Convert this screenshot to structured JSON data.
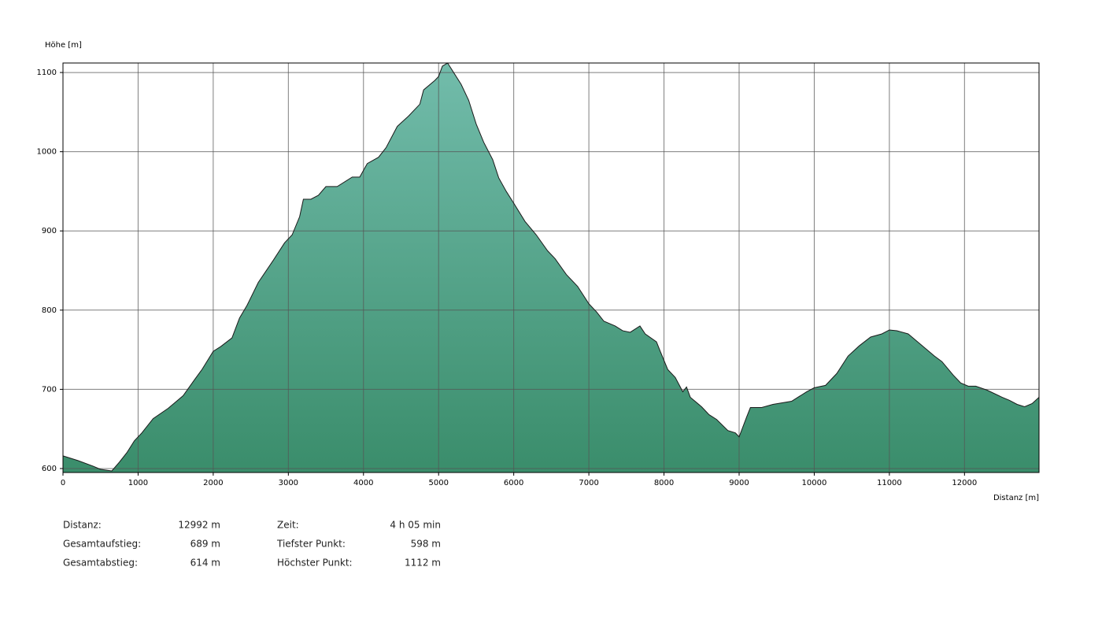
{
  "chart_data": {
    "type": "area",
    "ylabel": "Höhe [m]",
    "xlabel": "Distanz [m]",
    "x": [
      0,
      200,
      400,
      500,
      650,
      750,
      850,
      950,
      1050,
      1200,
      1400,
      1600,
      1750,
      1850,
      2000,
      2100,
      2250,
      2350,
      2450,
      2600,
      2800,
      2950,
      3050,
      3150,
      3200,
      3300,
      3400,
      3500,
      3650,
      3850,
      3950,
      4050,
      4200,
      4300,
      4450,
      4600,
      4750,
      4800,
      4950,
      5000,
      5050,
      5120,
      5200,
      5300,
      5400,
      5500,
      5600,
      5720,
      5800,
      5900,
      6000,
      6150,
      6300,
      6450,
      6550,
      6700,
      6850,
      7000,
      7100,
      7200,
      7350,
      7450,
      7550,
      7680,
      7750,
      7900,
      7950,
      8050,
      8150,
      8250,
      8300,
      8350,
      8500,
      8600,
      8700,
      8850,
      8950,
      9000,
      9100,
      9150,
      9300,
      9450,
      9700,
      9900,
      10000,
      10150,
      10300,
      10450,
      10600,
      10750,
      10900,
      11000,
      11100,
      11250,
      11350,
      11600,
      11700,
      11850,
      11950,
      12050,
      12150,
      12300,
      12500,
      12600,
      12700,
      12800,
      12900,
      12992
    ],
    "values": [
      616,
      610,
      603,
      599,
      597,
      608,
      620,
      635,
      645,
      663,
      676,
      692,
      712,
      725,
      748,
      754,
      765,
      790,
      806,
      835,
      863,
      885,
      895,
      918,
      940,
      940,
      945,
      956,
      956,
      968,
      968,
      985,
      993,
      1005,
      1032,
      1045,
      1060,
      1078,
      1090,
      1095,
      1108,
      1112,
      1100,
      1085,
      1065,
      1035,
      1012,
      990,
      967,
      950,
      935,
      912,
      895,
      875,
      865,
      845,
      830,
      808,
      798,
      786,
      780,
      774,
      772,
      780,
      770,
      760,
      748,
      725,
      715,
      697,
      703,
      690,
      678,
      668,
      662,
      648,
      645,
      640,
      665,
      677,
      677,
      681,
      685,
      697,
      702,
      705,
      720,
      742,
      755,
      766,
      770,
      775,
      774,
      770,
      762,
      742,
      735,
      718,
      708,
      704,
      704,
      699,
      690,
      686,
      681,
      678,
      682,
      690
    ],
    "colors": {
      "top": "#72bcab",
      "bottom": "#3a8d6b",
      "line": "#1a1a1a"
    },
    "xlim": [
      0,
      12992
    ],
    "ylim": [
      595,
      1112
    ],
    "xticks": [
      0,
      1000,
      2000,
      3000,
      4000,
      5000,
      6000,
      7000,
      8000,
      9000,
      10000,
      11000,
      12000
    ],
    "yticks": [
      600,
      700,
      800,
      900,
      1000,
      1100
    ],
    "grid": true
  },
  "stats": [
    {
      "label": "Distanz:",
      "value": "12992 m"
    },
    {
      "label": "Gesamtaufstieg:",
      "value": "689 m"
    },
    {
      "label": "Gesamtabstieg:",
      "value": "614 m"
    },
    {
      "label": "Zeit:",
      "value": "4 h 05 min"
    },
    {
      "label": "Tiefster Punkt:",
      "value": "598 m"
    },
    {
      "label": "Höchster Punkt:",
      "value": "1112 m"
    }
  ]
}
